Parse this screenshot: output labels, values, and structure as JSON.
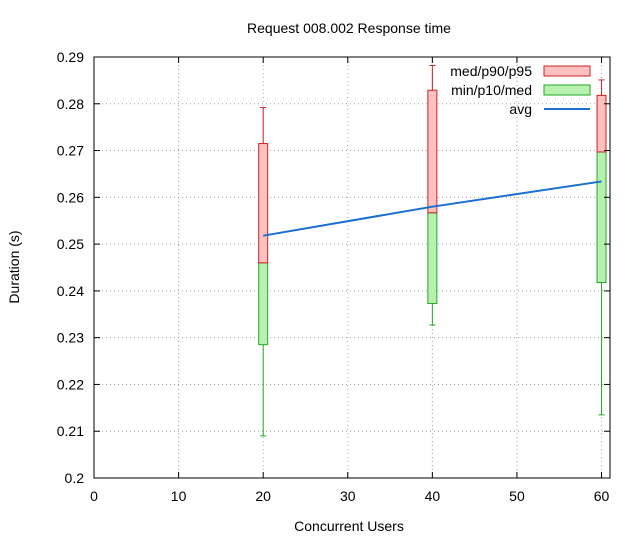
{
  "chart_data": {
    "type": "box",
    "title": "Request 008.002 Response time",
    "xlabel": "Concurrent Users",
    "ylabel": "Duration (s)",
    "xlim": [
      0,
      61
    ],
    "ylim": [
      0.2,
      0.29
    ],
    "x_ticks": [
      0,
      10,
      20,
      30,
      40,
      50,
      60
    ],
    "x_tick_labels": [
      "0",
      "10",
      "20",
      "30",
      "40",
      "50",
      "60"
    ],
    "y_ticks": [
      0.2,
      0.21,
      0.22,
      0.23,
      0.24,
      0.25,
      0.26,
      0.27,
      0.28,
      0.29
    ],
    "y_tick_labels": [
      "0.2",
      "0.21",
      "0.22",
      "0.23",
      "0.24",
      "0.25",
      "0.26",
      "0.27",
      "0.28",
      "0.29"
    ],
    "grid": true,
    "legend_position": "top-right",
    "legend": [
      {
        "label": "med/p90/p95",
        "kind": "box",
        "fill": "#ffc0c0",
        "stroke": "#cc2222"
      },
      {
        "label": "min/p10/med",
        "kind": "box",
        "fill": "#b8f0b0",
        "stroke": "#22aa22"
      },
      {
        "label": "avg",
        "kind": "line",
        "stroke": "#1a6fd0"
      }
    ],
    "colors": {
      "upper_fill": "#ffc0c0",
      "upper_stroke": "#cc2222",
      "lower_fill": "#b8f0b0",
      "lower_stroke": "#22aa22",
      "avg": "#1a6fd0"
    },
    "series": [
      {
        "x": 20,
        "min": 0.209,
        "p10": 0.2285,
        "med": 0.246,
        "p90": 0.2715,
        "p95": 0.2792,
        "avg": 0.2518
      },
      {
        "x": 40,
        "min": 0.2327,
        "p10": 0.2373,
        "med": 0.2567,
        "p90": 0.2829,
        "p95": 0.2882,
        "avg": 0.258
      },
      {
        "x": 60,
        "min": 0.2135,
        "p10": 0.2418,
        "med": 0.2697,
        "p90": 0.2818,
        "p95": 0.2851,
        "avg": 0.2634
      }
    ]
  }
}
